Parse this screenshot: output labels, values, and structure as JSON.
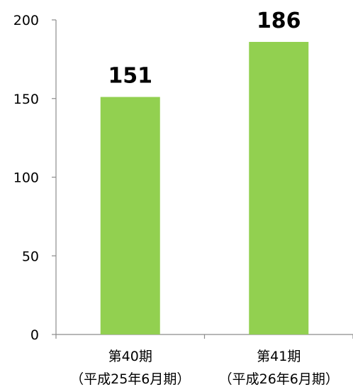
{
  "chart_data": {
    "type": "bar",
    "categories": [
      {
        "line1": "第40期",
        "line2": "（平成25年6月期）"
      },
      {
        "line1": "第41期",
        "line2": "（平成26年6月期）"
      }
    ],
    "values": [
      151,
      186
    ],
    "data_labels": [
      "151",
      "186"
    ],
    "ylim": [
      0,
      200
    ],
    "yticks": [
      0,
      50,
      100,
      150,
      200
    ],
    "ytick_labels": [
      "0",
      "50",
      "100",
      "150",
      "200"
    ],
    "title": "",
    "xlabel": "",
    "ylabel": "",
    "grid": false,
    "bar_color": "#92d050",
    "axis_color": "#8c8c8c"
  }
}
